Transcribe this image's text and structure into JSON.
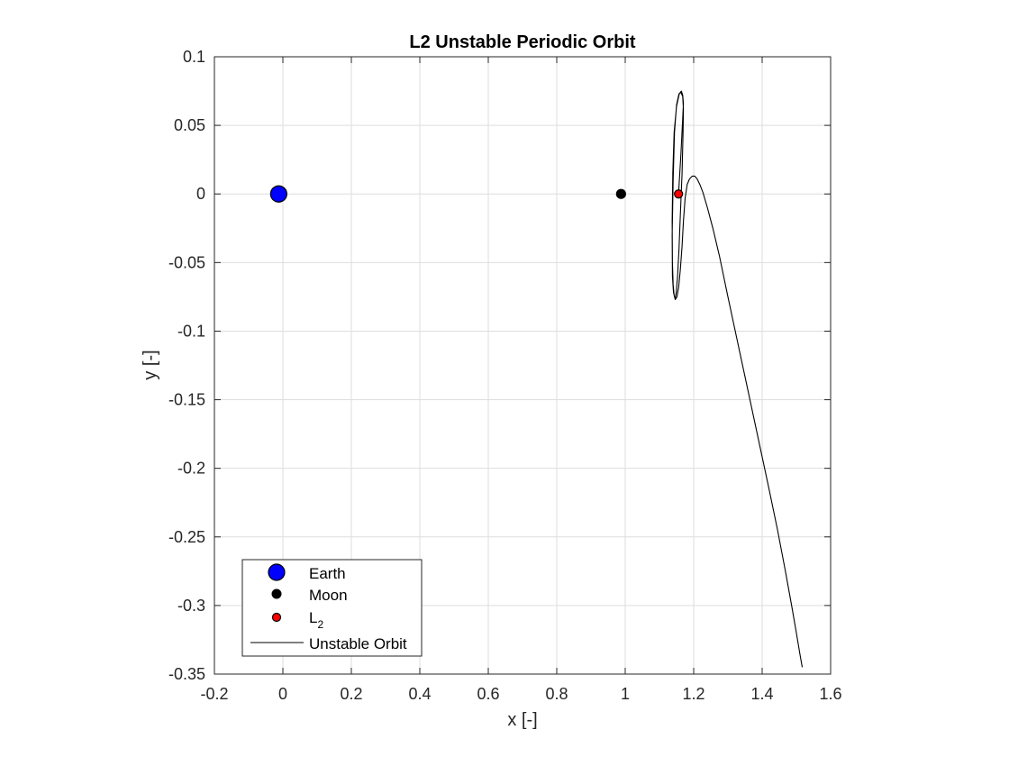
{
  "chart_data": {
    "type": "scatter",
    "title": "L2 Unstable Periodic Orbit",
    "xlabel": "x [-]",
    "ylabel": "y [-]",
    "xlim": [
      -0.2,
      1.6
    ],
    "ylim": [
      -0.35,
      0.1
    ],
    "xticks": [
      -0.2,
      0,
      0.2,
      0.4,
      0.6,
      0.8,
      1,
      1.2,
      1.4,
      1.6
    ],
    "xtick_labels": [
      "-0.2",
      "0",
      "0.2",
      "0.4",
      "0.6",
      "0.8",
      "1",
      "1.2",
      "1.4",
      "1.6"
    ],
    "yticks": [
      0.1,
      0.05,
      0,
      -0.05,
      -0.1,
      -0.15,
      -0.2,
      -0.25,
      -0.3,
      -0.35
    ],
    "ytick_labels": [
      "0.1",
      "0.05",
      "0",
      "-0.05",
      "-0.1",
      "-0.15",
      "-0.2",
      "-0.25",
      "-0.3",
      "-0.35"
    ],
    "grid": true,
    "legend_position": "bottom-left",
    "series": [
      {
        "name": "Earth",
        "kind": "marker",
        "color": "#0000ff",
        "x": [
          -0.0122
        ],
        "y": [
          0
        ]
      },
      {
        "name": "Moon",
        "kind": "marker",
        "color": "#000000",
        "x": [
          0.9878
        ],
        "y": [
          0
        ]
      },
      {
        "name": "L",
        "subscript": "2",
        "kind": "marker",
        "color": "#ff0000",
        "x": [
          1.1557
        ],
        "y": [
          0
        ]
      },
      {
        "name": "Unstable Orbit",
        "kind": "line",
        "color": "#000000",
        "x": [
          1.1557,
          1.163,
          1.168,
          1.17,
          1.168,
          1.164,
          1.158,
          1.15,
          1.143,
          1.139,
          1.137,
          1.138,
          1.14,
          1.143,
          1.146,
          1.149,
          1.153,
          1.157,
          1.161,
          1.166,
          1.169,
          1.17,
          1.168,
          1.163,
          1.157,
          1.15,
          1.144,
          1.14,
          1.137,
          1.138,
          1.141,
          1.146,
          1.151,
          1.156,
          1.161,
          1.166,
          1.17,
          1.175,
          1.181,
          1.188,
          1.196,
          1.203,
          1.21,
          1.218,
          1.227,
          1.24,
          1.256,
          1.275,
          1.3,
          1.33,
          1.36,
          1.39,
          1.42,
          1.445,
          1.468,
          1.486,
          1.5,
          1.51,
          1.517
        ],
        "y": [
          0.0,
          0.03,
          0.055,
          0.066,
          0.072,
          0.075,
          0.073,
          0.064,
          0.045,
          0.015,
          -0.02,
          -0.05,
          -0.066,
          -0.074,
          -0.076,
          -0.072,
          -0.06,
          -0.04,
          -0.015,
          0.015,
          0.045,
          0.062,
          0.071,
          0.074,
          0.073,
          0.065,
          0.045,
          0.01,
          -0.03,
          -0.06,
          -0.072,
          -0.077,
          -0.075,
          -0.068,
          -0.055,
          -0.038,
          -0.02,
          -0.003,
          0.007,
          0.011,
          0.013,
          0.013,
          0.011,
          0.007,
          0.001,
          -0.01,
          -0.025,
          -0.045,
          -0.075,
          -0.11,
          -0.145,
          -0.18,
          -0.215,
          -0.245,
          -0.275,
          -0.3,
          -0.32,
          -0.335,
          -0.345
        ]
      }
    ]
  }
}
